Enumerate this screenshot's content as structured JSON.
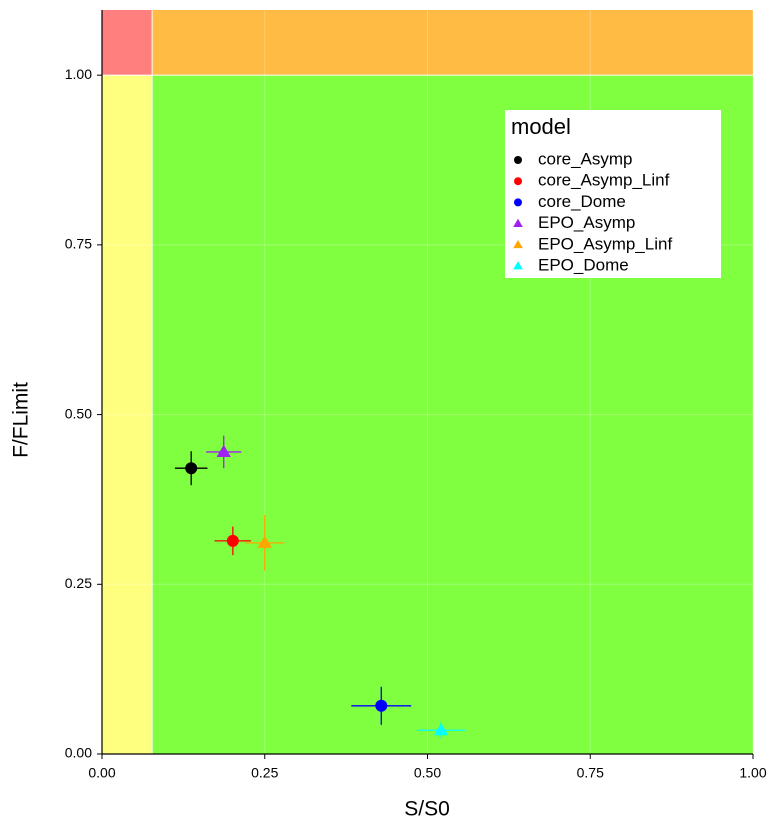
{
  "chart_data": {
    "type": "scatter",
    "xlabel": "S/S0",
    "ylabel": "F/FLimit",
    "xlim": [
      0,
      1
    ],
    "ylim": [
      0,
      1.096
    ],
    "xticks": [
      {
        "value": 0,
        "label": "0.00"
      },
      {
        "value": 0.25,
        "label": "0.25"
      },
      {
        "value": 0.5,
        "label": "0.50"
      },
      {
        "value": 0.75,
        "label": "0.75"
      },
      {
        "value": 1,
        "label": "1.00"
      }
    ],
    "yticks": [
      {
        "value": 0,
        "label": "0.00"
      },
      {
        "value": 0.25,
        "label": "0.25"
      },
      {
        "value": 0.5,
        "label": "0.50"
      },
      {
        "value": 0.75,
        "label": "0.75"
      },
      {
        "value": 1,
        "label": "1.00"
      }
    ],
    "grid": true,
    "x_threshold": 0.077,
    "y_threshold": 1,
    "region_colors": {
      "low_x_high_y": "#ff7f7f",
      "high_x_high_y": "#ffbb44",
      "low_x_low_y": "#ffff7f",
      "high_x_low_y": "#80ff40"
    },
    "legend_title": "model",
    "legend_position": "top-right",
    "series": [
      {
        "name": "core_Asymp",
        "color": "#000000",
        "marker": "circle",
        "x": [
          0.137
        ],
        "y": [
          0.421
        ],
        "xerr": [
          0.025
        ],
        "yerr": [
          0.025
        ]
      },
      {
        "name": "core_Asymp_Linf",
        "color": "#ff0000",
        "marker": "circle",
        "x": [
          0.201
        ],
        "y": [
          0.314
        ],
        "xerr": [
          0.028
        ],
        "yerr": [
          0.021
        ]
      },
      {
        "name": "core_Dome",
        "color": "#0000ff",
        "marker": "circle",
        "x": [
          0.429
        ],
        "y": [
          0.071
        ],
        "xerr": [
          0.046
        ],
        "yerr": [
          0.028
        ]
      },
      {
        "name": "EPO_Asymp",
        "color": "#a020f0",
        "marker": "triangle",
        "x": [
          0.187
        ],
        "y": [
          0.445
        ],
        "xerr": [
          0.027
        ],
        "yerr": [
          0.024
        ]
      },
      {
        "name": "EPO_Asymp_Linf",
        "color": "#ffa500",
        "marker": "triangle",
        "x": [
          0.25
        ],
        "y": [
          0.311
        ],
        "xerr": [
          0.03
        ],
        "yerr": [
          0.041
        ]
      },
      {
        "name": "EPO_Dome",
        "color": "#00ffff",
        "marker": "triangle",
        "x": [
          0.521
        ],
        "y": [
          0.035
        ],
        "xerr": [
          0.037
        ],
        "yerr": [
          0.0125
        ]
      }
    ]
  }
}
